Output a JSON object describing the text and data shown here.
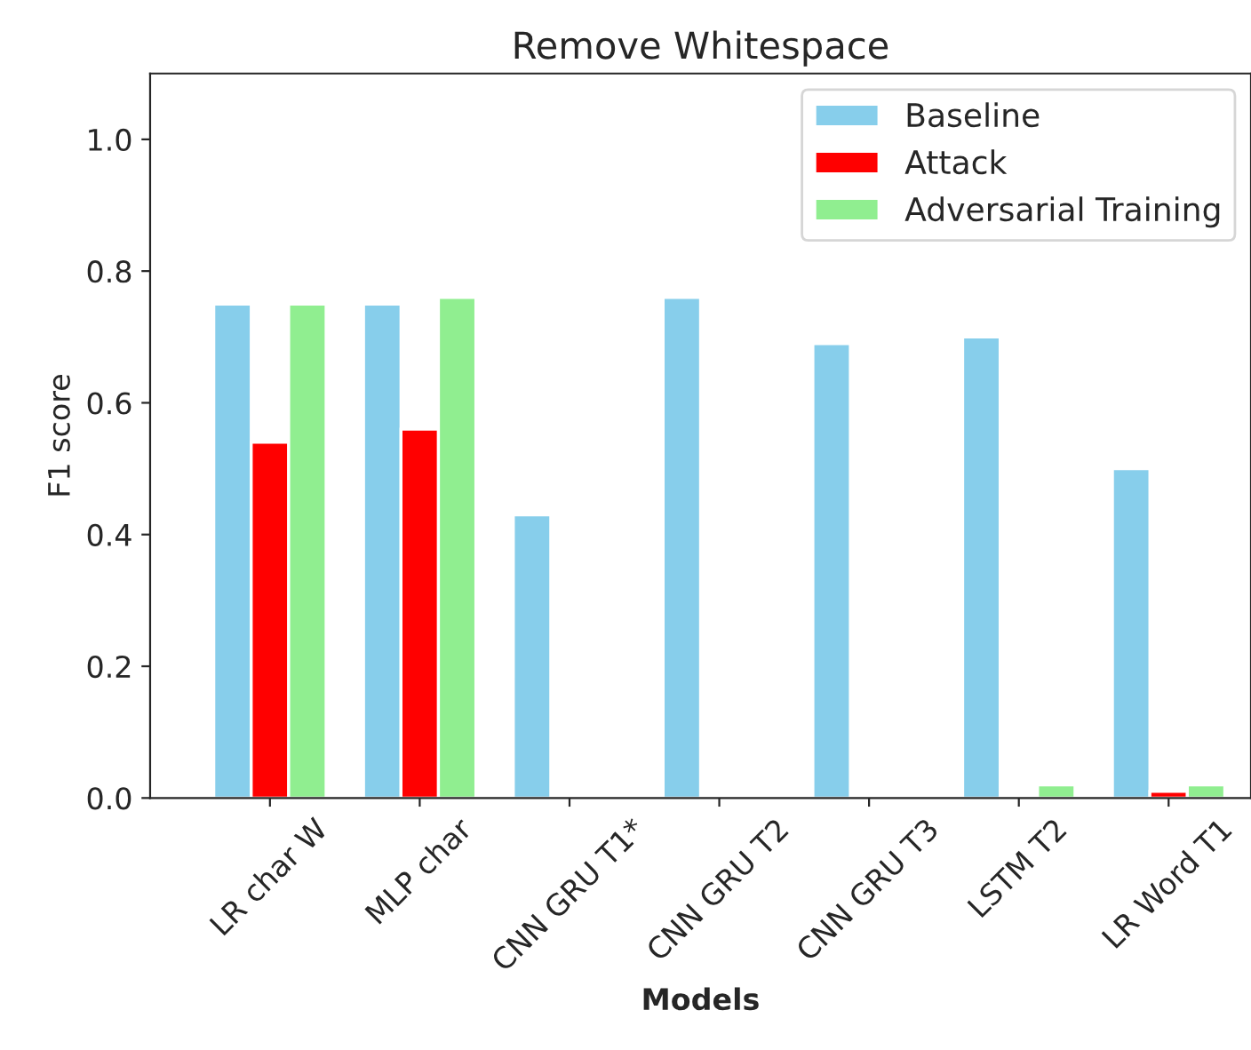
{
  "chart_data": {
    "type": "bar",
    "title": "Remove Whitespace",
    "xlabel": "Models",
    "ylabel": "F1 score",
    "categories": [
      "LR char W",
      "MLP char",
      "CNN GRU T1*",
      "CNN GRU T2",
      "CNN GRU T3",
      "LSTM T2",
      "LR Word T1"
    ],
    "series": [
      {
        "name": "Baseline",
        "color": "#87ceeb",
        "values": [
          0.75,
          0.75,
          0.43,
          0.76,
          0.69,
          0.7,
          0.5
        ]
      },
      {
        "name": "Attack",
        "color": "#ff0000",
        "values": [
          0.54,
          0.56,
          null,
          null,
          null,
          null,
          0.01
        ]
      },
      {
        "name": "Adversarial Training",
        "color": "#90ee90",
        "values": [
          0.75,
          0.76,
          null,
          null,
          null,
          0.02,
          0.02
        ]
      }
    ],
    "ylim": [
      0,
      1.1
    ],
    "yticks": [
      {
        "value": 0,
        "label": "0.0"
      },
      {
        "value": 0.2,
        "label": "0.2"
      },
      {
        "value": 0.4,
        "label": "0.4"
      },
      {
        "value": 0.6,
        "label": "0.6"
      },
      {
        "value": 0.8,
        "label": "0.8"
      },
      {
        "value": 1.0,
        "label": "1.0"
      }
    ],
    "legend": "top right",
    "grid": false
  }
}
